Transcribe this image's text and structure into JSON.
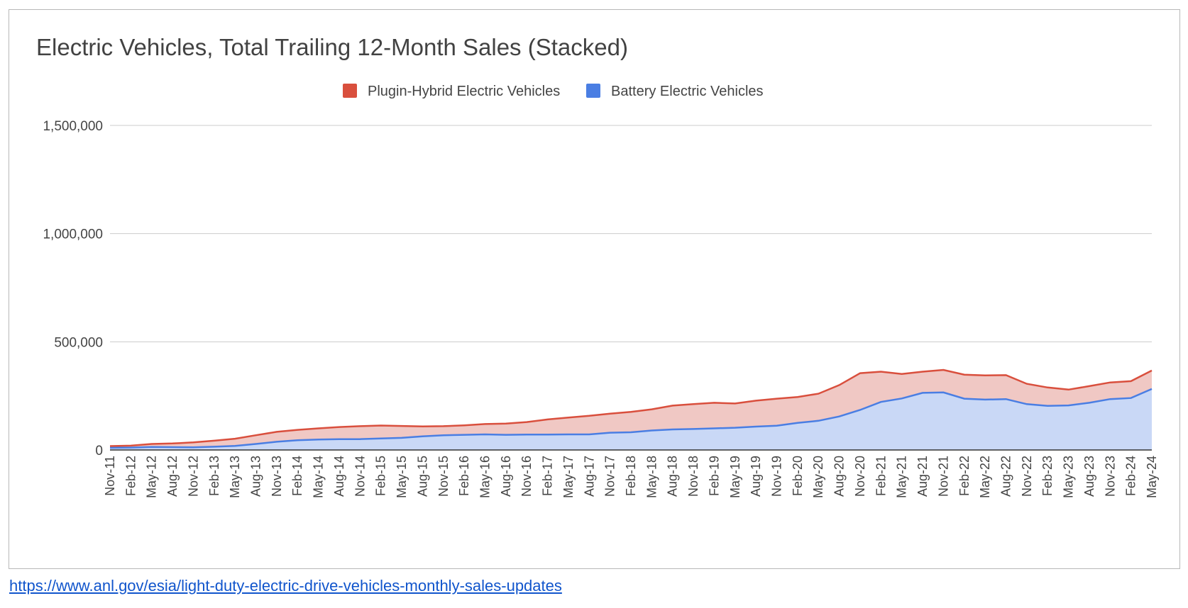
{
  "link": {
    "text": "https://www.anl.gov/esia/light-duty-electric-drive-vehicles-monthly-sales-updates"
  },
  "chart_data": {
    "type": "area",
    "stacked": true,
    "title": "Electric Vehicles, Total Trailing 12-Month Sales (Stacked)",
    "xlabel": "",
    "ylabel": "",
    "ylim": [
      0,
      1500000
    ],
    "yticks": [
      0,
      500000,
      1000000,
      1500000
    ],
    "ytick_labels": [
      "0",
      "500,000",
      "1,000,000",
      "1,500,000"
    ],
    "grid": true,
    "legend_position": "top",
    "x_start": "Nov-11",
    "x_end": "May-24",
    "x_tick_labels": [
      "Nov-11",
      "Feb-12",
      "May-12",
      "Aug-12",
      "Nov-12",
      "Feb-13",
      "May-13",
      "Aug-13",
      "Nov-13",
      "Feb-14",
      "May-14",
      "Aug-14",
      "Nov-14",
      "Feb-15",
      "May-15",
      "Aug-15",
      "Nov-15",
      "Feb-16",
      "May-16",
      "Aug-16",
      "Nov-16",
      "Feb-17",
      "May-17",
      "Aug-17",
      "Nov-17",
      "Feb-18",
      "May-18",
      "Aug-18",
      "Nov-18",
      "Feb-19",
      "May-19",
      "Aug-19",
      "Nov-19",
      "Feb-20",
      "May-20",
      "Aug-20",
      "Nov-20",
      "Feb-21",
      "May-21",
      "Aug-21",
      "Nov-21",
      "Feb-22",
      "May-22",
      "Aug-22",
      "Nov-22",
      "Feb-23",
      "May-23",
      "Aug-23",
      "Nov-23",
      "Feb-24",
      "May-24"
    ],
    "series": [
      {
        "name": "Battery Electric Vehicles",
        "color": "#4a7ee3",
        "fill": "#c9d8f6",
        "values": [
          10000,
          11000,
          14000,
          13000,
          12000,
          15000,
          19000,
          28000,
          38000,
          45000,
          48000,
          50000,
          50000,
          53000,
          56000,
          63000,
          68000,
          70000,
          72000,
          70000,
          71000,
          71000,
          72000,
          72000,
          80000,
          82000,
          90000,
          95000,
          97000,
          100000,
          103000,
          108000,
          112000,
          125000,
          135000,
          155000,
          185000,
          222000,
          238000,
          264000,
          266000,
          237000,
          233000,
          235000,
          212000,
          204000,
          206000,
          218000,
          235000,
          240000,
          282000
        ]
      },
      {
        "name": "Plugin-Hybrid Electric Vehicles",
        "color": "#d94f3d",
        "fill": "#f0c8c4",
        "values": [
          8000,
          9000,
          14000,
          17000,
          23000,
          28000,
          33000,
          40000,
          46000,
          48000,
          52000,
          56000,
          60000,
          60000,
          55000,
          46000,
          42000,
          44000,
          48000,
          52000,
          58000,
          70000,
          78000,
          86000,
          88000,
          94000,
          98000,
          110000,
          115000,
          118000,
          112000,
          120000,
          125000,
          120000,
          125000,
          145000,
          170000,
          140000,
          113000,
          98000,
          104000,
          111000,
          112000,
          111000,
          94000,
          85000,
          73000,
          77000,
          77000,
          78000,
          85000
        ]
      }
    ]
  }
}
